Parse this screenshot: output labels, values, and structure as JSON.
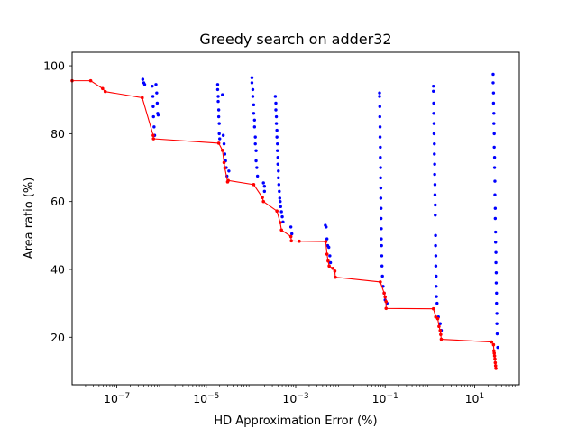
{
  "chart_data": {
    "type": "scatter",
    "title": "Greedy search on adder32",
    "xlabel": "HD Approximation Error (%)",
    "ylabel": "Area ratio (%)",
    "xscale": "log",
    "xlim": [
      1e-08,
      100
    ],
    "ylim": [
      6,
      104
    ],
    "xticks": [
      {
        "value": 1e-07,
        "label": "10−7"
      },
      {
        "value": 1e-05,
        "label": "10−5"
      },
      {
        "value": 0.001,
        "label": "10−3"
      },
      {
        "value": 0.1,
        "label": "10−1"
      },
      {
        "value": 10,
        "label": "101"
      }
    ],
    "yticks": [
      20,
      40,
      60,
      80,
      100
    ],
    "grid": false,
    "legend": "none",
    "colors": {
      "candidates": "#0000ff",
      "pareto": "#ff0000",
      "front_line": "#ff0000"
    },
    "series": [
      {
        "style": "blue-dots",
        "points": [
          [
            3.8e-07,
            96
          ],
          [
            4e-07,
            95
          ],
          [
            4.2e-07,
            94.5
          ],
          [
            6.2e-07,
            94
          ],
          [
            6.4e-07,
            91
          ],
          [
            6.5e-07,
            88
          ],
          [
            6.6e-07,
            85
          ],
          [
            6.8e-07,
            82
          ],
          [
            7e-07,
            79.5
          ],
          [
            7.5e-07,
            94.5
          ],
          [
            7.8e-07,
            92
          ],
          [
            8e-07,
            89
          ],
          [
            8.2e-07,
            86
          ],
          [
            8.4e-07,
            85.5
          ],
          [
            1.8e-05,
            94.5
          ],
          [
            1.8e-05,
            93
          ],
          [
            1.85e-05,
            91
          ],
          [
            1.85e-05,
            89.5
          ],
          [
            1.9e-05,
            87
          ],
          [
            1.9e-05,
            85
          ],
          [
            1.95e-05,
            83
          ],
          [
            1.95e-05,
            80
          ],
          [
            2e-05,
            78.5
          ],
          [
            2.3e-05,
            91.5
          ],
          [
            2.4e-05,
            79.5
          ],
          [
            2.5e-05,
            77
          ],
          [
            2.6e-05,
            74
          ],
          [
            2.7e-05,
            72
          ],
          [
            2.8e-05,
            70
          ],
          [
            2.9e-05,
            67.5
          ],
          [
            3.2e-05,
            69
          ],
          [
            0.000105,
            96.5
          ],
          [
            0.000105,
            95
          ],
          [
            0.00011,
            93
          ],
          [
            0.00011,
            91
          ],
          [
            0.000115,
            88.5
          ],
          [
            0.000115,
            86
          ],
          [
            0.00012,
            84
          ],
          [
            0.00012,
            82
          ],
          [
            0.000125,
            79
          ],
          [
            0.000125,
            77
          ],
          [
            0.00013,
            75
          ],
          [
            0.00013,
            72
          ],
          [
            0.000135,
            70
          ],
          [
            0.00014,
            67.5
          ],
          [
            0.00019,
            65.5
          ],
          [
            0.0002,
            64.5
          ],
          [
            0.0002,
            63
          ],
          [
            0.00035,
            91
          ],
          [
            0.00036,
            89
          ],
          [
            0.00036,
            87
          ],
          [
            0.00037,
            85
          ],
          [
            0.00037,
            83
          ],
          [
            0.00038,
            81
          ],
          [
            0.00038,
            79
          ],
          [
            0.00039,
            77
          ],
          [
            0.00039,
            75
          ],
          [
            0.0004,
            73
          ],
          [
            0.0004,
            71
          ],
          [
            0.00041,
            69
          ],
          [
            0.00041,
            67
          ],
          [
            0.00042,
            65
          ],
          [
            0.00043,
            63
          ],
          [
            0.00044,
            61
          ],
          [
            0.00045,
            60
          ],
          [
            0.00046,
            58.5
          ],
          [
            0.00048,
            57
          ],
          [
            0.0005,
            55.5
          ],
          [
            0.00052,
            54
          ],
          [
            0.00078,
            52.5
          ],
          [
            0.00082,
            50.5
          ],
          [
            0.0046,
            53
          ],
          [
            0.0048,
            52.5
          ],
          [
            0.005,
            49
          ],
          [
            0.0052,
            47
          ],
          [
            0.0055,
            46.5
          ],
          [
            0.0058,
            44
          ],
          [
            0.006,
            42
          ],
          [
            0.075,
            92
          ],
          [
            0.075,
            91
          ],
          [
            0.076,
            88
          ],
          [
            0.076,
            85
          ],
          [
            0.077,
            82
          ],
          [
            0.077,
            79
          ],
          [
            0.078,
            76
          ],
          [
            0.078,
            73
          ],
          [
            0.079,
            70
          ],
          [
            0.079,
            67
          ],
          [
            0.08,
            64
          ],
          [
            0.08,
            61
          ],
          [
            0.081,
            58
          ],
          [
            0.081,
            55
          ],
          [
            0.082,
            52
          ],
          [
            0.082,
            49
          ],
          [
            0.083,
            47
          ],
          [
            0.084,
            44
          ],
          [
            0.085,
            41
          ],
          [
            0.087,
            38
          ],
          [
            0.09,
            35
          ],
          [
            0.095,
            33
          ],
          [
            0.1,
            31
          ],
          [
            0.11,
            30
          ],
          [
            1.2,
            94
          ],
          [
            1.2,
            92.5
          ],
          [
            1.22,
            89
          ],
          [
            1.22,
            86
          ],
          [
            1.24,
            83
          ],
          [
            1.24,
            80
          ],
          [
            1.26,
            77
          ],
          [
            1.26,
            74
          ],
          [
            1.28,
            71
          ],
          [
            1.28,
            68
          ],
          [
            1.3,
            65
          ],
          [
            1.3,
            62
          ],
          [
            1.32,
            59
          ],
          [
            1.32,
            56
          ],
          [
            1.34,
            50
          ],
          [
            1.34,
            47
          ],
          [
            1.36,
            44
          ],
          [
            1.36,
            41
          ],
          [
            1.38,
            38
          ],
          [
            1.38,
            35
          ],
          [
            1.4,
            32
          ],
          [
            1.45,
            30
          ],
          [
            1.55,
            26
          ],
          [
            1.7,
            24
          ],
          [
            1.8,
            22
          ],
          [
            26,
            97.5
          ],
          [
            26,
            95
          ],
          [
            26.5,
            92
          ],
          [
            26.5,
            89
          ],
          [
            27,
            86
          ],
          [
            27,
            83
          ],
          [
            27.5,
            80
          ],
          [
            27.5,
            76
          ],
          [
            28,
            73
          ],
          [
            28,
            70
          ],
          [
            28.5,
            66
          ],
          [
            28.5,
            62
          ],
          [
            29,
            58
          ],
          [
            29,
            55
          ],
          [
            29.5,
            51
          ],
          [
            29.5,
            48
          ],
          [
            30,
            45
          ],
          [
            30,
            42
          ],
          [
            30.5,
            39
          ],
          [
            30.5,
            36
          ],
          [
            31,
            33
          ],
          [
            31,
            30
          ],
          [
            31.5,
            27
          ],
          [
            31.5,
            24
          ],
          [
            32,
            21
          ],
          [
            33,
            17
          ]
        ]
      },
      {
        "style": "red-front",
        "points": [
          [
            1e-08,
            95.6
          ],
          [
            2.6e-08,
            95.6
          ],
          [
            4.8e-08,
            93.3
          ],
          [
            5.5e-08,
            92.4
          ],
          [
            3.7e-07,
            90.6
          ],
          [
            6.5e-07,
            79.5
          ],
          [
            6.6e-07,
            78.5
          ],
          [
            1.9e-05,
            77.2
          ],
          [
            2.3e-05,
            75.1
          ],
          [
            2.5e-05,
            71.5
          ],
          [
            2.6e-05,
            69.9
          ],
          [
            3e-05,
            65.8
          ],
          [
            3.1e-05,
            66.2
          ],
          [
            0.000115,
            65.0
          ],
          [
            0.00018,
            61.2
          ],
          [
            0.00019,
            60.0
          ],
          [
            0.00038,
            57.2
          ],
          [
            0.00045,
            53.8
          ],
          [
            0.00048,
            51.6
          ],
          [
            0.00078,
            49.7
          ],
          [
            0.0008,
            48.4
          ],
          [
            0.0012,
            48.3
          ],
          [
            0.0047,
            48.2
          ],
          [
            0.005,
            44.5
          ],
          [
            0.0053,
            42.5
          ],
          [
            0.0056,
            41.0
          ],
          [
            0.0068,
            40.3
          ],
          [
            0.0075,
            39.5
          ],
          [
            0.0077,
            37.7
          ],
          [
            0.078,
            36.3
          ],
          [
            0.095,
            33.0
          ],
          [
            0.1,
            31.9
          ],
          [
            0.105,
            30.5
          ],
          [
            0.105,
            28.5
          ],
          [
            1.2,
            28.4
          ],
          [
            1.35,
            26.0
          ],
          [
            1.5,
            25.5
          ],
          [
            1.6,
            23.2
          ],
          [
            1.7,
            22.0
          ],
          [
            1.75,
            20.8
          ],
          [
            1.8,
            19.4
          ],
          [
            24,
            18.6
          ],
          [
            26.5,
            17.8
          ],
          [
            27,
            16.0
          ],
          [
            27.5,
            15.3
          ],
          [
            28,
            14.5
          ],
          [
            28.5,
            13.6
          ],
          [
            29,
            12.5
          ],
          [
            29.5,
            11.6
          ],
          [
            30,
            10.8
          ]
        ]
      }
    ]
  }
}
